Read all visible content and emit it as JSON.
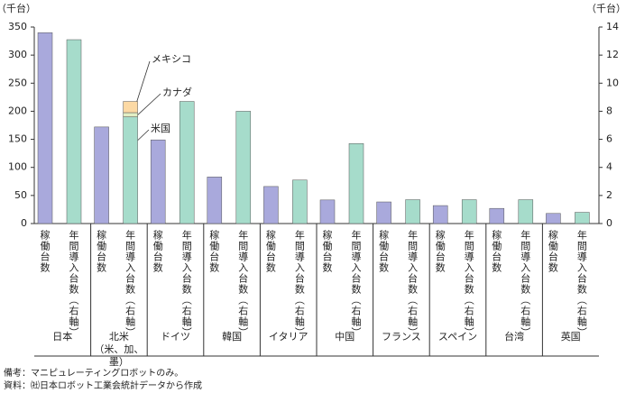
{
  "chart_data": {
    "type": "bar",
    "y_unit": "（千台）",
    "y2_unit": "（千台）",
    "categories": [
      "日本",
      "北米\n（米、加、墨）",
      "ドイツ",
      "韓国",
      "イタリア",
      "中国",
      "フランス",
      "スペイン",
      "台湾",
      "英国"
    ],
    "series": [
      {
        "name": "稼働台数",
        "color": "#a9a9dc",
        "axis": "y",
        "values": [
          340,
          172,
          149,
          83,
          66,
          42,
          38.5,
          32,
          27,
          18
        ]
      },
      {
        "name": "年間導入台数（右軸）",
        "color": "#a6dccb",
        "axis": "y2",
        "values": [
          13.1,
          null,
          8.7,
          8.0,
          3.1,
          5.7,
          1.7,
          1.7,
          1.7,
          0.8
        ]
      },
      {
        "name": "米国",
        "color": "#a6dccb",
        "axis": "y2",
        "stack": true,
        "values": [
          null,
          7.6,
          null,
          null,
          null,
          null,
          null,
          null,
          null,
          null
        ]
      },
      {
        "name": "カナダ",
        "color": "#e2eec4",
        "axis": "y2",
        "stack": true,
        "values": [
          null,
          0.3,
          null,
          null,
          null,
          null,
          null,
          null,
          null,
          null
        ]
      },
      {
        "name": "メキシコ",
        "color": "#fcd9a4",
        "axis": "y2",
        "stack": true,
        "values": [
          null,
          0.8,
          null,
          null,
          null,
          null,
          null,
          null,
          null,
          null
        ]
      }
    ],
    "ylim": [
      0,
      350
    ],
    "yticks": [
      0,
      50,
      100,
      150,
      200,
      250,
      300,
      350
    ],
    "y2lim": [
      0,
      14
    ],
    "y2ticks": [
      0,
      2,
      4,
      6,
      8,
      10,
      12,
      14
    ],
    "notes": [
      "備考：マニピュレーティングロボットのみ。",
      "資料：㈳日本ロボット工業会統計データから作成"
    ]
  }
}
